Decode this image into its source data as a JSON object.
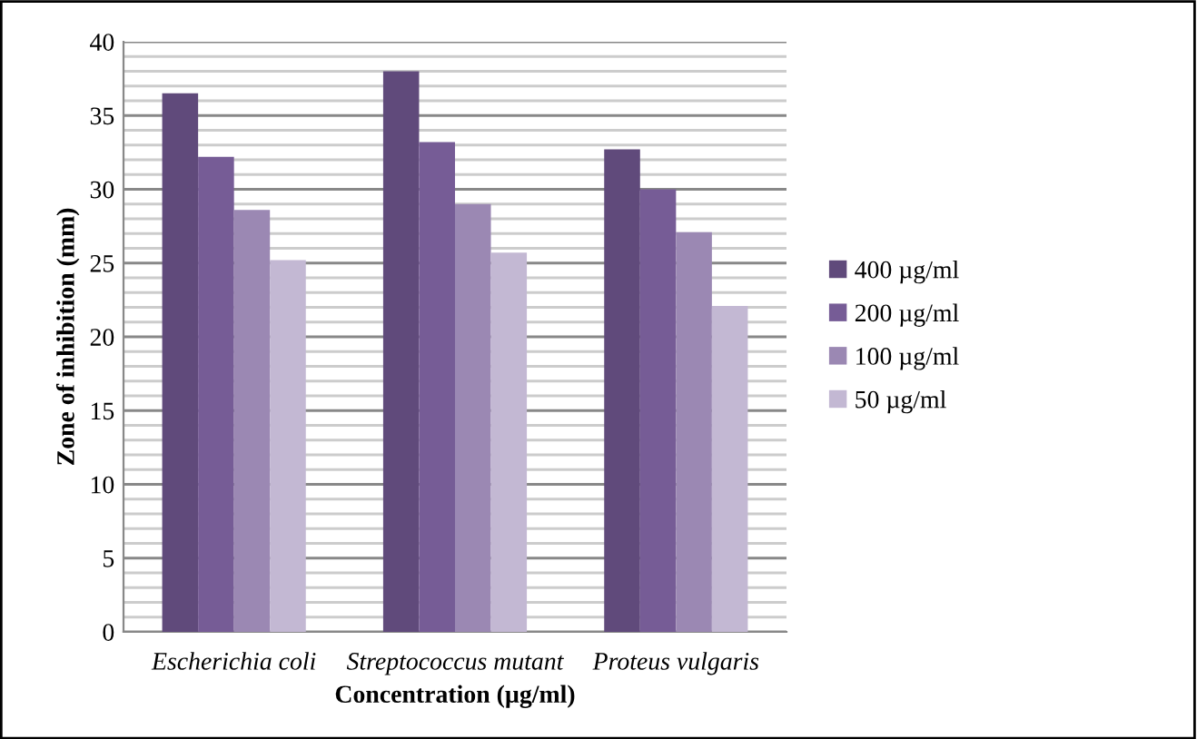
{
  "chart_data": {
    "type": "bar",
    "xlabel": "Concentration (µg/ml)",
    "ylabel": "Zone of inhibition (mm)",
    "categories": [
      "Escherichia coli",
      "Streptococcus mutant",
      "Proteus vulgaris"
    ],
    "series": [
      {
        "name": "400 µg/ml",
        "color": "#604a7b",
        "values": [
          36.5,
          38.0,
          32.7
        ]
      },
      {
        "name": "200 µg/ml",
        "color": "#765c96",
        "values": [
          32.2,
          33.2,
          30.0
        ]
      },
      {
        "name": "100 µg/ml",
        "color": "#9b88b3",
        "values": [
          28.6,
          29.0,
          27.1
        ]
      },
      {
        "name": "50 µg/ml",
        "color": "#c3b8d3",
        "values": [
          25.2,
          25.7,
          22.1
        ]
      }
    ],
    "ylim": [
      0,
      40
    ],
    "yticks": [
      0,
      5,
      10,
      15,
      20,
      25,
      30,
      35,
      40
    ],
    "grid": "y",
    "legend": "right"
  }
}
